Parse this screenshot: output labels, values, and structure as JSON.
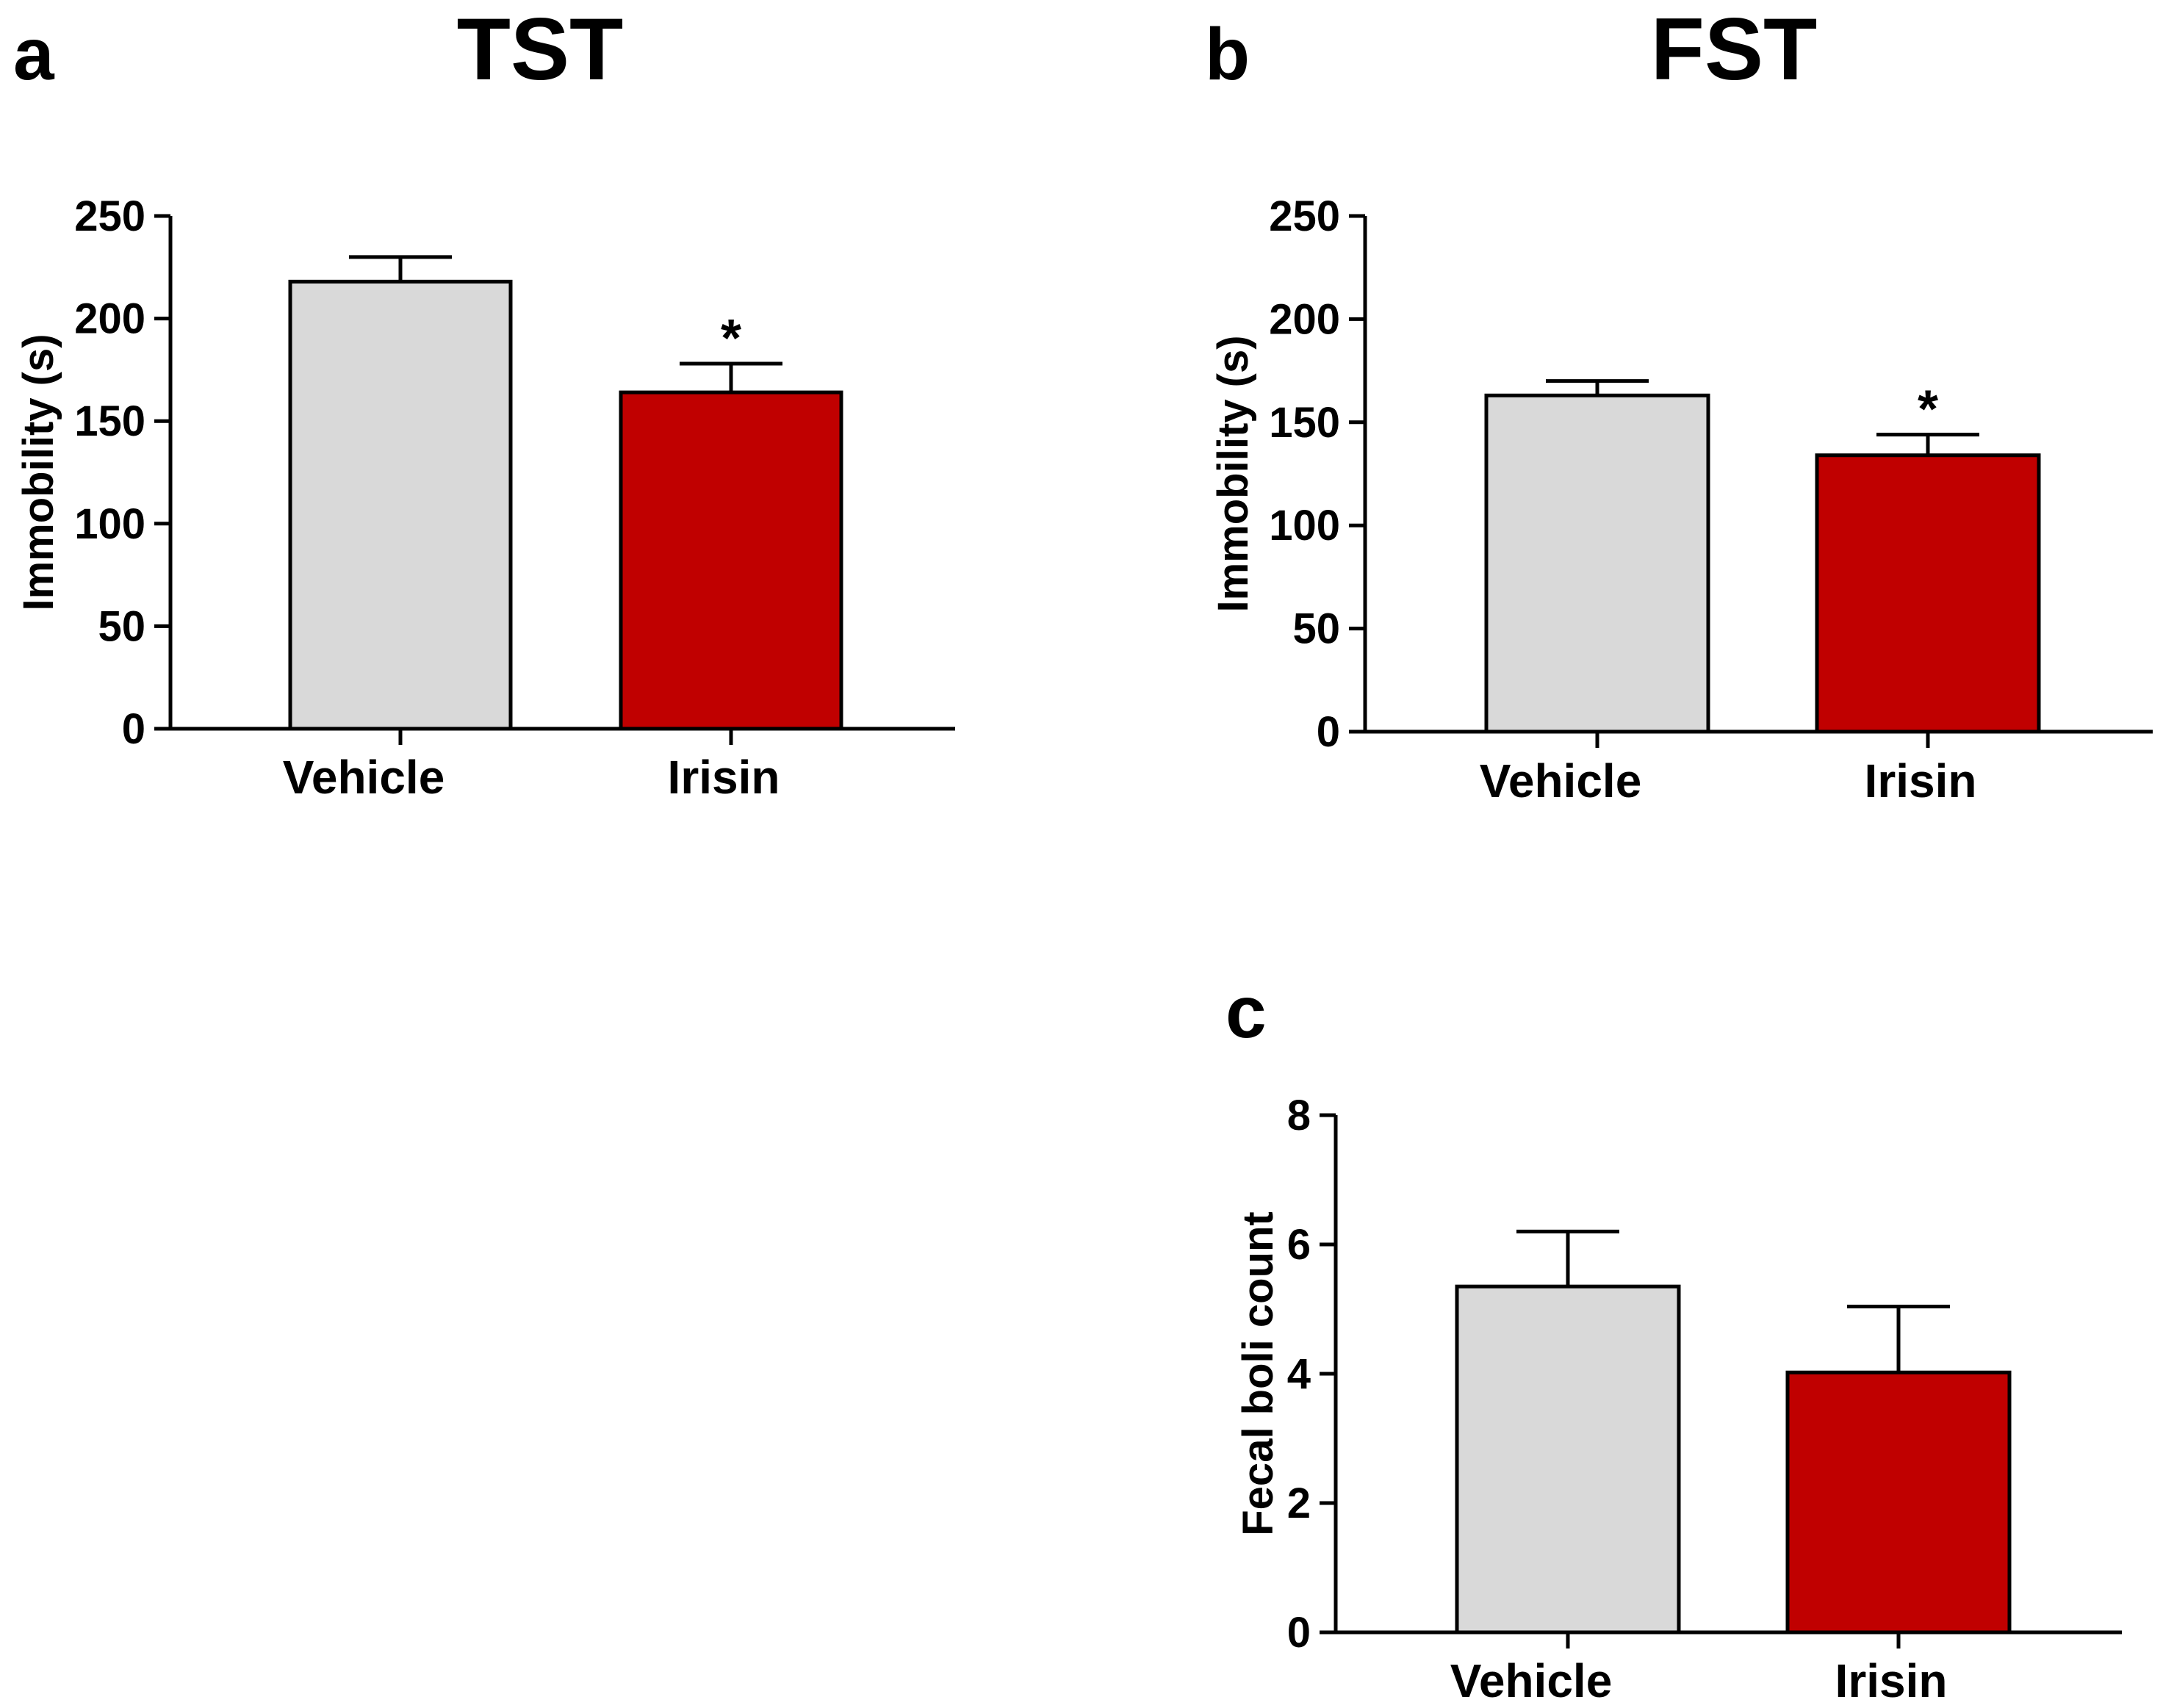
{
  "chart_data": [
    {
      "type": "bar",
      "panel_label": "a",
      "title": "TST",
      "ylabel": "Immobility (s)",
      "xlabel": "",
      "categories": [
        "Vehicle",
        "Irisin"
      ],
      "values": [
        218,
        164
      ],
      "errors": [
        12,
        14
      ],
      "significance": [
        "",
        "*"
      ],
      "ylim": [
        0,
        250
      ],
      "yticks": [
        0,
        50,
        100,
        150,
        200,
        250
      ],
      "colors": [
        "#d9d9d9",
        "#c00000"
      ],
      "grid": false
    },
    {
      "type": "bar",
      "panel_label": "b",
      "title": "FST",
      "ylabel": "Immobility (s)",
      "xlabel": "",
      "categories": [
        "Vehicle",
        "Irisin"
      ],
      "values": [
        163,
        134
      ],
      "errors": [
        7,
        10
      ],
      "significance": [
        "",
        "*"
      ],
      "ylim": [
        0,
        250
      ],
      "yticks": [
        0,
        50,
        100,
        150,
        200,
        250
      ],
      "colors": [
        "#d9d9d9",
        "#c00000"
      ],
      "grid": false
    },
    {
      "type": "bar",
      "panel_label": "c",
      "title": "",
      "ylabel": "Fecal boli count",
      "xlabel": "",
      "categories": [
        "Vehicle",
        "Irisin"
      ],
      "values": [
        5.35,
        4.02
      ],
      "errors": [
        0.85,
        1.02
      ],
      "significance": [
        "",
        ""
      ],
      "ylim": [
        0,
        8
      ],
      "yticks": [
        0,
        2,
        4,
        6,
        8
      ],
      "colors": [
        "#d9d9d9",
        "#c00000"
      ],
      "grid": false
    }
  ]
}
